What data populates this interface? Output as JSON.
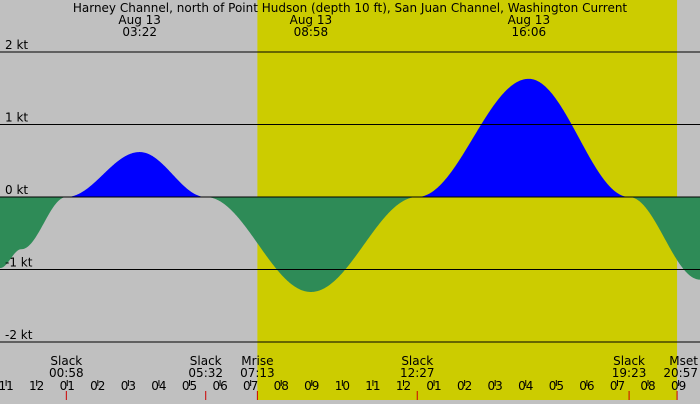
{
  "chart_data": {
    "type": "area",
    "title": "Harney Channel, north of Point Hudson (depth 10 ft), San Juan Channel, Washington Current",
    "ylim": [
      -2.1,
      2.1
    ],
    "y_ticks": [
      {
        "value": 2,
        "label": "2 kt"
      },
      {
        "value": 1,
        "label": "1 kt"
      },
      {
        "value": 0,
        "label": "0 kt"
      },
      {
        "value": -1,
        "label": "-1 kt"
      },
      {
        "value": -2,
        "label": "-2 kt"
      }
    ],
    "xlim": [
      -1.2,
      21.7
    ],
    "x_ticks": [
      {
        "hour": -1,
        "label": "11"
      },
      {
        "hour": 0,
        "label": "12"
      },
      {
        "hour": 1,
        "label": "01"
      },
      {
        "hour": 2,
        "label": "02"
      },
      {
        "hour": 3,
        "label": "03"
      },
      {
        "hour": 4,
        "label": "04"
      },
      {
        "hour": 5,
        "label": "05"
      },
      {
        "hour": 6,
        "label": "06"
      },
      {
        "hour": 7,
        "label": "07"
      },
      {
        "hour": 8,
        "label": "08"
      },
      {
        "hour": 9,
        "label": "09"
      },
      {
        "hour": 10,
        "label": "10"
      },
      {
        "hour": 11,
        "label": "11"
      },
      {
        "hour": 12,
        "label": "12"
      },
      {
        "hour": 13,
        "label": "01"
      },
      {
        "hour": 14,
        "label": "02"
      },
      {
        "hour": 15,
        "label": "03"
      },
      {
        "hour": 16,
        "label": "04"
      },
      {
        "hour": 17,
        "label": "05"
      },
      {
        "hour": 18,
        "label": "06"
      },
      {
        "hour": 19,
        "label": "07"
      },
      {
        "hour": 20,
        "label": "08"
      },
      {
        "hour": 21,
        "label": "09"
      }
    ],
    "series": [
      {
        "points": [
          [
            -1.2,
            -0.98
          ],
          [
            -0.5,
            -0.72
          ],
          [
            0.97,
            0.0
          ],
          [
            3.37,
            0.62
          ],
          [
            5.53,
            0.0
          ],
          [
            8.97,
            -1.31
          ],
          [
            12.45,
            0.0
          ],
          [
            16.1,
            1.63
          ],
          [
            19.38,
            0.0
          ],
          [
            21.7,
            -1.14
          ]
        ]
      }
    ],
    "daylight": {
      "start": 7.22,
      "end": 20.95
    },
    "top_events": [
      {
        "hour": 3.37,
        "date": "Aug 13",
        "time": "03:22"
      },
      {
        "hour": 8.97,
        "date": "Aug 13",
        "time": "08:58"
      },
      {
        "hour": 16.1,
        "date": "Aug 13",
        "time": "16:06"
      }
    ],
    "bottom_events": [
      {
        "hour": 0.97,
        "name": "Slack",
        "time": "00:58"
      },
      {
        "hour": 5.53,
        "name": "Slack",
        "time": "05:32"
      },
      {
        "hour": 7.22,
        "name": "Mrise",
        "time": "07:13"
      },
      {
        "hour": 12.45,
        "name": "Slack",
        "time": "12:27"
      },
      {
        "hour": 19.38,
        "name": "Slack",
        "time": "19:23"
      },
      {
        "hour": 20.95,
        "name": "Mset",
        "time": "20:57"
      }
    ],
    "colors": {
      "background": "#c0c0c0",
      "daylight": "#cccc00",
      "flood": "#0000ff",
      "ebb": "#2e8b57",
      "grid": "#000000",
      "event_tick": "#cc0000"
    }
  }
}
